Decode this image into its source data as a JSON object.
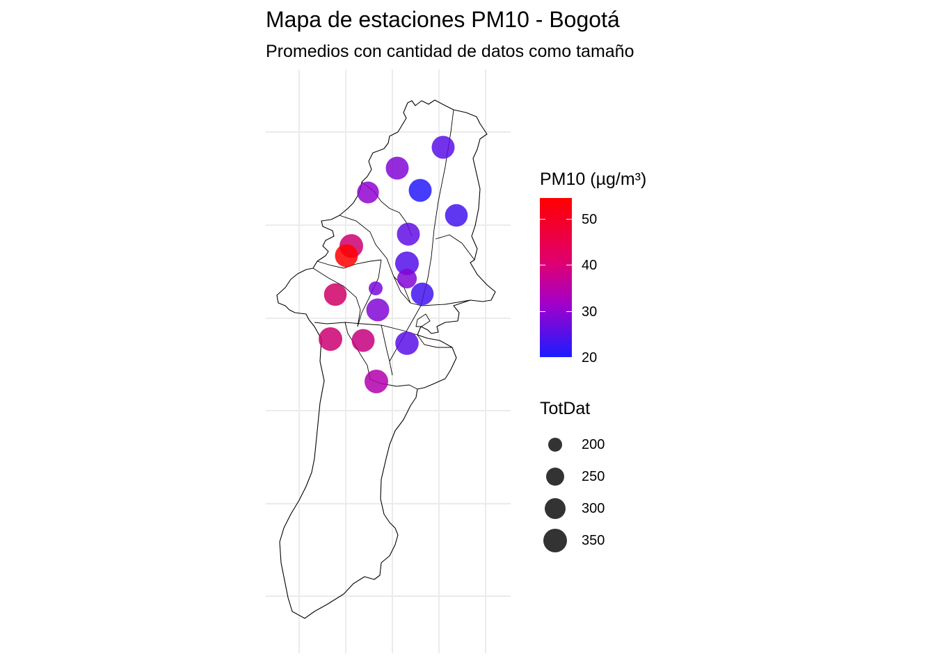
{
  "title": "Mapa de estaciones PM10 - Bogotá",
  "subtitle": "Promedios con cantidad de datos como tamaño",
  "colors": {
    "low": "#1c1cff",
    "mid": "#a400c8",
    "high": "#ff0000",
    "grid": "#ebebeb",
    "boundary": "#000000",
    "size_key": "#333333"
  },
  "legend_color": {
    "title": "PM10 (µg/m³)",
    "range": [
      20,
      55
    ],
    "ticks": [
      {
        "label": "50",
        "value": 50
      },
      {
        "label": "40",
        "value": 40
      },
      {
        "label": "30",
        "value": 30
      },
      {
        "label": "20",
        "value": 20
      }
    ]
  },
  "legend_size": {
    "title": "TotDat",
    "items": [
      {
        "label": "200",
        "value": 200
      },
      {
        "label": "250",
        "value": 250
      },
      {
        "label": "300",
        "value": 300
      },
      {
        "label": "350",
        "value": 350
      }
    ]
  },
  "stations": [
    {
      "pm10": 28,
      "totdat": 330
    },
    {
      "pm10": 33,
      "totdat": 330
    },
    {
      "pm10": 21,
      "totdat": 330
    },
    {
      "pm10": 35,
      "totdat": 300
    },
    {
      "pm10": 25,
      "totdat": 320
    },
    {
      "pm10": 29,
      "totdat": 330
    },
    {
      "pm10": 45,
      "totdat": 350
    },
    {
      "pm10": 55,
      "totdat": 330
    },
    {
      "pm10": 27,
      "totdat": 350
    },
    {
      "pm10": 33,
      "totdat": 240
    },
    {
      "pm10": 32,
      "totdat": 120
    },
    {
      "pm10": 25,
      "totdat": 320
    },
    {
      "pm10": 46,
      "totdat": 320
    },
    {
      "pm10": 33,
      "totdat": 330
    },
    {
      "pm10": 45,
      "totdat": 350
    },
    {
      "pm10": 44,
      "totdat": 330
    },
    {
      "pm10": 28,
      "totdat": 340
    },
    {
      "pm10": 40,
      "totdat": 350
    }
  ]
}
